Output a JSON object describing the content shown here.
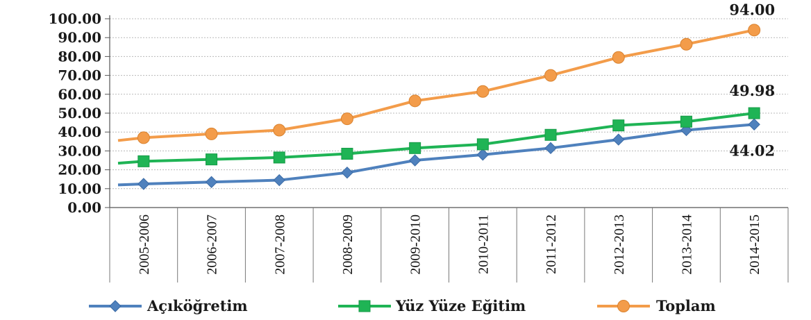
{
  "chart_data": {
    "type": "line",
    "categories": [
      "2005-2006",
      "2006-2007",
      "2007-2008",
      "2008-2009",
      "2009-2010",
      "2010-2011",
      "2011-2012",
      "2012-2013",
      "2013-2014",
      "2014-2015"
    ],
    "yticks": [
      "0.00",
      "10.00",
      "20.00",
      "30.00",
      "40.00",
      "50.00",
      "60.00",
      "70.00",
      "80.00",
      "90.00",
      "100.00"
    ],
    "ylim": [
      0,
      100
    ],
    "grid": true,
    "legend_position": "bottom",
    "series": [
      {
        "name": "Açıköğretim",
        "color": "#4f81bd",
        "marker": "diamond",
        "start": 12.0,
        "values": [
          12.5,
          13.5,
          14.5,
          18.5,
          25.0,
          28.0,
          31.5,
          36.0,
          41.0,
          44.02
        ],
        "end_label": "44.02"
      },
      {
        "name": "Yüz Yüze Eğitim",
        "color": "#1fb455",
        "marker": "square",
        "start": 23.5,
        "values": [
          24.5,
          25.5,
          26.5,
          28.5,
          31.5,
          33.5,
          38.5,
          43.5,
          45.5,
          49.98
        ],
        "end_label": "49.98"
      },
      {
        "name": "Toplam",
        "color": "#f39c4a",
        "marker": "circle",
        "start": 35.5,
        "values": [
          37.0,
          39.0,
          41.0,
          47.0,
          56.5,
          61.5,
          70.0,
          79.5,
          86.5,
          94.0
        ],
        "end_label": "94.00"
      }
    ]
  }
}
